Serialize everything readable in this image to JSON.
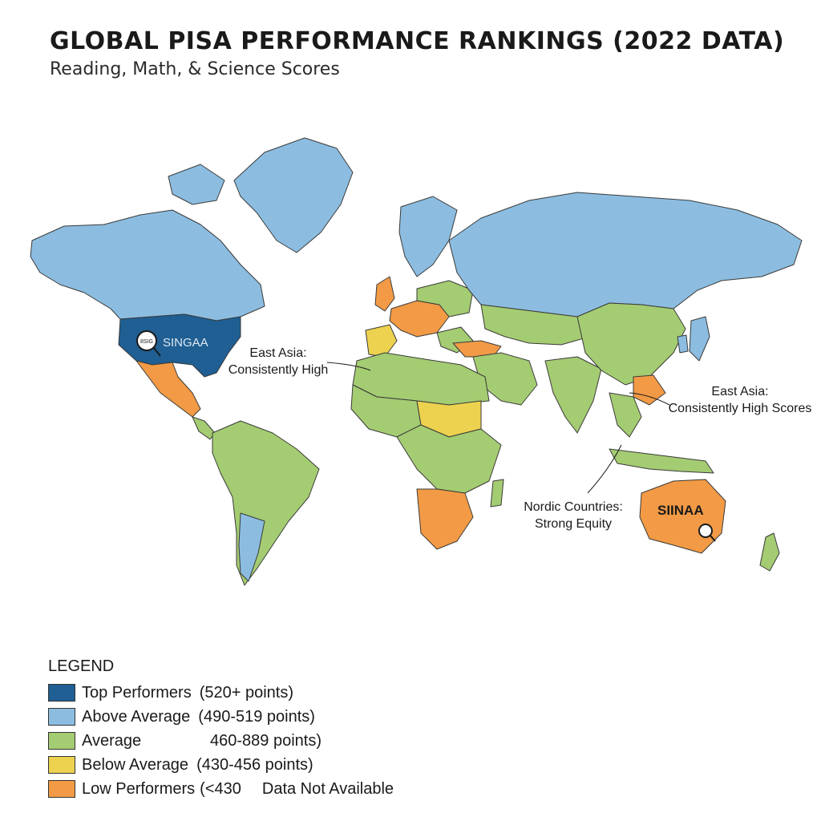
{
  "header": {
    "title": "GLOBAL PISA PERFORMANCE RANKINGS (2022 DATA)",
    "subtitle": "Reading, Math, & Science Scores"
  },
  "colors": {
    "top": "#1f5f93",
    "above": "#8cbde0",
    "average": "#a4cc72",
    "below": "#ecd24f",
    "low": "#f29a45",
    "ocean": "#ffffff",
    "border": "#3a3a3a"
  },
  "annotations": {
    "east_asia_left": [
      "East Asia:",
      "Consistently High"
    ],
    "east_asia_right": [
      "East Asia:",
      "Consistently High Scores"
    ],
    "nordic": [
      "Nordic Countries:",
      "Strong Equity"
    ]
  },
  "map_labels": {
    "usa_badge": "8SIG",
    "usa_label": "SINGAA",
    "australia_label": "SIINAA"
  },
  "legend": {
    "title": "LEGEND",
    "items": [
      {
        "name": "Top Performers",
        "range": "(520+ points)",
        "color": "#1f5f93"
      },
      {
        "name": "Above Average",
        "range": "(490-519 points)",
        "color": "#8cbde0"
      },
      {
        "name": "Average",
        "range": "460-889 points)",
        "color": "#a4cc72"
      },
      {
        "name": "Below Average",
        "range": "(430-456 points)",
        "color": "#ecd24f"
      },
      {
        "name": "Low Performers",
        "range": "(<430",
        "color": "#f29a45",
        "extra": "Data Not Available"
      }
    ]
  }
}
